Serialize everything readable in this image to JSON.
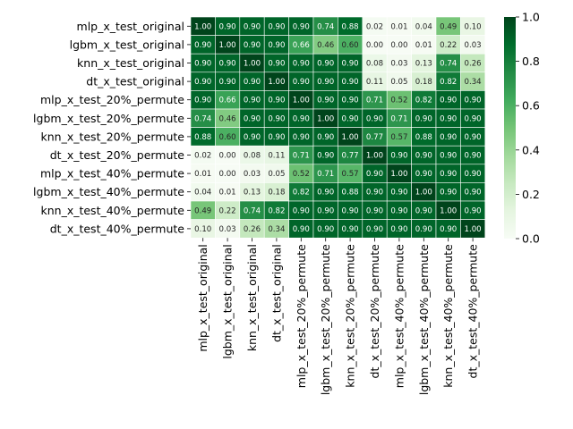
{
  "chart_data": {
    "type": "heatmap",
    "row_labels": [
      "mlp_x_test_original",
      "lgbm_x_test_original",
      "knn_x_test_original",
      "dt_x_test_original",
      "mlp_x_test_20%_permute",
      "lgbm_x_test_20%_permute",
      "knn_x_test_20%_permute",
      "dt_x_test_20%_permute",
      "mlp_x_test_40%_permute",
      "lgbm_x_test_40%_permute",
      "knn_x_test_40%_permute",
      "dt_x_test_40%_permute"
    ],
    "col_labels": [
      "mlp_x_test_original",
      "lgbm_x_test_original",
      "knn_x_test_original",
      "dt_x_test_original",
      "mlp_x_test_20%_permute",
      "lgbm_x_test_20%_permute",
      "knn_x_test_20%_permute",
      "dt_x_test_20%_permute",
      "mlp_x_test_40%_permute",
      "lgbm_x_test_40%_permute",
      "knn_x_test_40%_permute",
      "dt_x_test_40%_permute"
    ],
    "values": [
      [
        1.0,
        0.9,
        0.9,
        0.9,
        0.9,
        0.74,
        0.88,
        0.02,
        0.01,
        0.04,
        0.49,
        0.1
      ],
      [
        0.9,
        1.0,
        0.9,
        0.9,
        0.66,
        0.46,
        0.6,
        0.0,
        0.0,
        0.01,
        0.22,
        0.03
      ],
      [
        0.9,
        0.9,
        1.0,
        0.9,
        0.9,
        0.9,
        0.9,
        0.08,
        0.03,
        0.13,
        0.74,
        0.26
      ],
      [
        0.9,
        0.9,
        0.9,
        1.0,
        0.9,
        0.9,
        0.9,
        0.11,
        0.05,
        0.18,
        0.82,
        0.34
      ],
      [
        0.9,
        0.66,
        0.9,
        0.9,
        1.0,
        0.9,
        0.9,
        0.71,
        0.52,
        0.82,
        0.9,
        0.9
      ],
      [
        0.74,
        0.46,
        0.9,
        0.9,
        0.9,
        1.0,
        0.9,
        0.9,
        0.71,
        0.9,
        0.9,
        0.9
      ],
      [
        0.88,
        0.6,
        0.9,
        0.9,
        0.9,
        0.9,
        1.0,
        0.77,
        0.57,
        0.88,
        0.9,
        0.9
      ],
      [
        0.02,
        0.0,
        0.08,
        0.11,
        0.71,
        0.9,
        0.77,
        1.0,
        0.9,
        0.9,
        0.9,
        0.9
      ],
      [
        0.01,
        0.0,
        0.03,
        0.05,
        0.52,
        0.71,
        0.57,
        0.9,
        1.0,
        0.9,
        0.9,
        0.9
      ],
      [
        0.04,
        0.01,
        0.13,
        0.18,
        0.82,
        0.9,
        0.88,
        0.9,
        0.9,
        1.0,
        0.9,
        0.9
      ],
      [
        0.49,
        0.22,
        0.74,
        0.82,
        0.9,
        0.9,
        0.9,
        0.9,
        0.9,
        0.9,
        1.0,
        0.9
      ],
      [
        0.1,
        0.03,
        0.26,
        0.34,
        0.9,
        0.9,
        0.9,
        0.9,
        0.9,
        0.9,
        0.9,
        1.0
      ]
    ],
    "value_format": "2 decimals",
    "colormap": "Greens",
    "vmin": 0.0,
    "vmax": 1.0,
    "colorbar_ticks": [
      "0.0",
      "0.2",
      "0.4",
      "0.6",
      "0.8",
      "1.0"
    ],
    "colorbar_tick_values": [
      0.0,
      0.2,
      0.4,
      0.6,
      0.8,
      1.0
    ],
    "cell_border_color": "#ffffff",
    "legend": "colorbar at right",
    "title": "",
    "xlabel": "",
    "ylabel": ""
  }
}
